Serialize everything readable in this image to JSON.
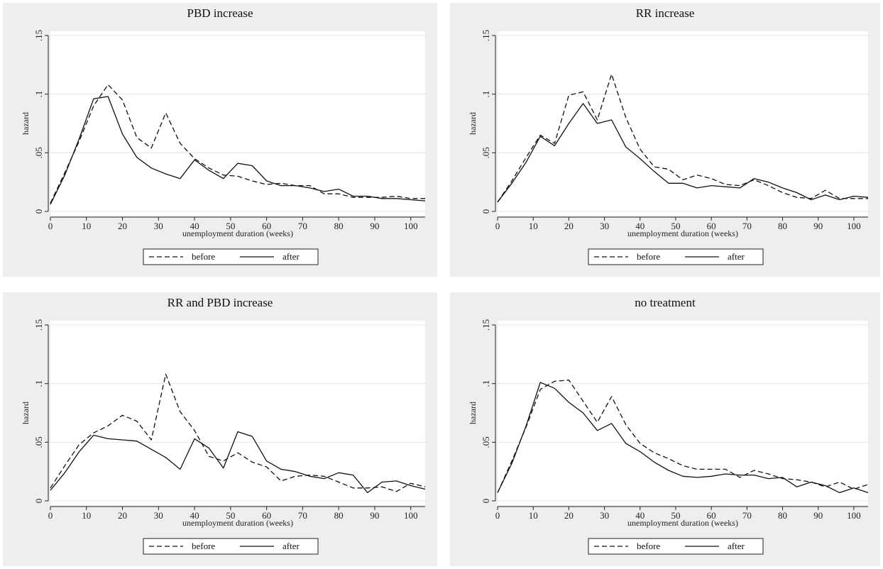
{
  "chart_data": [
    {
      "type": "line",
      "title": "PBD increase",
      "xlabel": "unemployment duration (weeks)",
      "ylabel": "hazard",
      "xlim": [
        0,
        104
      ],
      "ylim": [
        0,
        0.15
      ],
      "xticks": [
        "0",
        "10",
        "20",
        "30",
        "40",
        "50",
        "60",
        "70",
        "80",
        "90",
        "100"
      ],
      "yticks": [
        "0",
        ".05",
        ".1",
        ".15"
      ],
      "grid": true,
      "legend": "bottom",
      "series": [
        {
          "name": "before",
          "style": "dashed",
          "x": [
            0,
            4,
            8,
            12,
            16,
            20,
            24,
            28,
            32,
            36,
            40,
            44,
            48,
            52,
            56,
            60,
            64,
            68,
            72,
            76,
            80,
            84,
            88,
            92,
            96,
            100,
            104
          ],
          "y": [
            0.007,
            0.033,
            0.06,
            0.09,
            0.108,
            0.095,
            0.063,
            0.054,
            0.084,
            0.058,
            0.045,
            0.037,
            0.031,
            0.03,
            0.026,
            0.023,
            0.024,
            0.022,
            0.022,
            0.015,
            0.015,
            0.012,
            0.012,
            0.012,
            0.013,
            0.011,
            0.011
          ]
        },
        {
          "name": "after",
          "style": "solid",
          "x": [
            0,
            4,
            8,
            12,
            16,
            20,
            24,
            28,
            32,
            36,
            40,
            44,
            48,
            52,
            56,
            60,
            64,
            68,
            72,
            76,
            80,
            84,
            88,
            92,
            96,
            100,
            104
          ],
          "y": [
            0.006,
            0.031,
            0.062,
            0.096,
            0.098,
            0.066,
            0.046,
            0.037,
            0.032,
            0.028,
            0.044,
            0.035,
            0.028,
            0.041,
            0.039,
            0.026,
            0.022,
            0.022,
            0.02,
            0.017,
            0.019,
            0.013,
            0.013,
            0.011,
            0.011,
            0.01,
            0.009
          ]
        }
      ]
    },
    {
      "type": "line",
      "title": "RR increase",
      "xlabel": "unemployment duration (weeks)",
      "ylabel": "hazard",
      "xlim": [
        0,
        104
      ],
      "ylim": [
        0,
        0.15
      ],
      "xticks": [
        "0",
        "10",
        "20",
        "30",
        "40",
        "50",
        "60",
        "70",
        "80",
        "90",
        "100"
      ],
      "yticks": [
        "0",
        ".05",
        ".1",
        ".15"
      ],
      "grid": true,
      "legend": "bottom",
      "series": [
        {
          "name": "before",
          "style": "dashed",
          "x": [
            0,
            4,
            8,
            12,
            16,
            20,
            24,
            28,
            32,
            36,
            40,
            44,
            48,
            52,
            56,
            60,
            64,
            68,
            72,
            76,
            80,
            84,
            88,
            92,
            96,
            100,
            104
          ],
          "y": [
            0.008,
            0.026,
            0.046,
            0.065,
            0.058,
            0.099,
            0.102,
            0.078,
            0.117,
            0.08,
            0.053,
            0.038,
            0.036,
            0.027,
            0.031,
            0.028,
            0.023,
            0.022,
            0.027,
            0.022,
            0.016,
            0.012,
            0.011,
            0.018,
            0.011,
            0.011,
            0.011
          ]
        },
        {
          "name": "after",
          "style": "solid",
          "x": [
            0,
            4,
            8,
            12,
            16,
            20,
            24,
            28,
            32,
            36,
            40,
            44,
            48,
            52,
            56,
            60,
            64,
            68,
            72,
            76,
            80,
            84,
            88,
            92,
            96,
            100,
            104
          ],
          "y": [
            0.008,
            0.024,
            0.042,
            0.064,
            0.056,
            0.075,
            0.092,
            0.075,
            0.078,
            0.055,
            0.045,
            0.034,
            0.024,
            0.024,
            0.02,
            0.022,
            0.021,
            0.02,
            0.028,
            0.025,
            0.02,
            0.016,
            0.01,
            0.014,
            0.01,
            0.013,
            0.012
          ]
        }
      ]
    },
    {
      "type": "line",
      "title": "RR and PBD increase",
      "xlabel": "unemployment duration (weeks)",
      "ylabel": "hazard",
      "xlim": [
        0,
        104
      ],
      "ylim": [
        0,
        0.15
      ],
      "xticks": [
        "0",
        "10",
        "20",
        "30",
        "40",
        "50",
        "60",
        "70",
        "80",
        "90",
        "100"
      ],
      "yticks": [
        "0",
        ".05",
        ".1",
        ".15"
      ],
      "grid": true,
      "legend": "bottom",
      "series": [
        {
          "name": "before",
          "style": "dashed",
          "x": [
            0,
            4,
            8,
            12,
            16,
            20,
            24,
            28,
            32,
            36,
            40,
            44,
            48,
            52,
            56,
            60,
            64,
            68,
            72,
            76,
            80,
            84,
            88,
            92,
            96,
            100,
            104
          ],
          "y": [
            0.011,
            0.03,
            0.048,
            0.058,
            0.064,
            0.073,
            0.068,
            0.052,
            0.108,
            0.076,
            0.06,
            0.038,
            0.034,
            0.041,
            0.033,
            0.029,
            0.017,
            0.021,
            0.022,
            0.021,
            0.016,
            0.011,
            0.011,
            0.012,
            0.008,
            0.015,
            0.012
          ]
        },
        {
          "name": "after",
          "style": "solid",
          "x": [
            0,
            4,
            8,
            12,
            16,
            20,
            24,
            28,
            32,
            36,
            40,
            44,
            48,
            52,
            56,
            60,
            64,
            68,
            72,
            76,
            80,
            84,
            88,
            92,
            96,
            100,
            104
          ],
          "y": [
            0.009,
            0.024,
            0.042,
            0.056,
            0.053,
            0.052,
            0.051,
            0.044,
            0.037,
            0.027,
            0.053,
            0.045,
            0.028,
            0.059,
            0.055,
            0.034,
            0.027,
            0.025,
            0.021,
            0.019,
            0.024,
            0.022,
            0.007,
            0.016,
            0.017,
            0.013,
            0.01
          ]
        }
      ]
    },
    {
      "type": "line",
      "title": "no treatment",
      "xlabel": "unemployment duration (weeks)",
      "ylabel": "hazard",
      "xlim": [
        0,
        104
      ],
      "ylim": [
        0,
        0.15
      ],
      "xticks": [
        "0",
        "10",
        "20",
        "30",
        "40",
        "50",
        "60",
        "70",
        "80",
        "90",
        "100"
      ],
      "yticks": [
        "0",
        ".05",
        ".1",
        ".15"
      ],
      "grid": true,
      "legend": "bottom",
      "series": [
        {
          "name": "before",
          "style": "dashed",
          "x": [
            0,
            4,
            8,
            12,
            16,
            20,
            24,
            28,
            32,
            36,
            40,
            44,
            48,
            52,
            56,
            60,
            64,
            68,
            72,
            76,
            80,
            84,
            88,
            92,
            96,
            100,
            104
          ],
          "y": [
            0.007,
            0.034,
            0.063,
            0.095,
            0.102,
            0.103,
            0.085,
            0.067,
            0.089,
            0.065,
            0.049,
            0.041,
            0.036,
            0.03,
            0.027,
            0.027,
            0.027,
            0.02,
            0.026,
            0.023,
            0.019,
            0.018,
            0.016,
            0.012,
            0.016,
            0.01,
            0.014
          ]
        },
        {
          "name": "after",
          "style": "solid",
          "x": [
            0,
            4,
            8,
            12,
            16,
            20,
            24,
            28,
            32,
            36,
            40,
            44,
            48,
            52,
            56,
            60,
            64,
            68,
            72,
            76,
            80,
            84,
            88,
            92,
            96,
            100,
            104
          ],
          "y": [
            0.007,
            0.032,
            0.064,
            0.101,
            0.096,
            0.084,
            0.075,
            0.06,
            0.066,
            0.049,
            0.042,
            0.033,
            0.026,
            0.021,
            0.02,
            0.021,
            0.023,
            0.022,
            0.022,
            0.019,
            0.02,
            0.012,
            0.016,
            0.013,
            0.007,
            0.011,
            0.007
          ]
        }
      ]
    }
  ]
}
